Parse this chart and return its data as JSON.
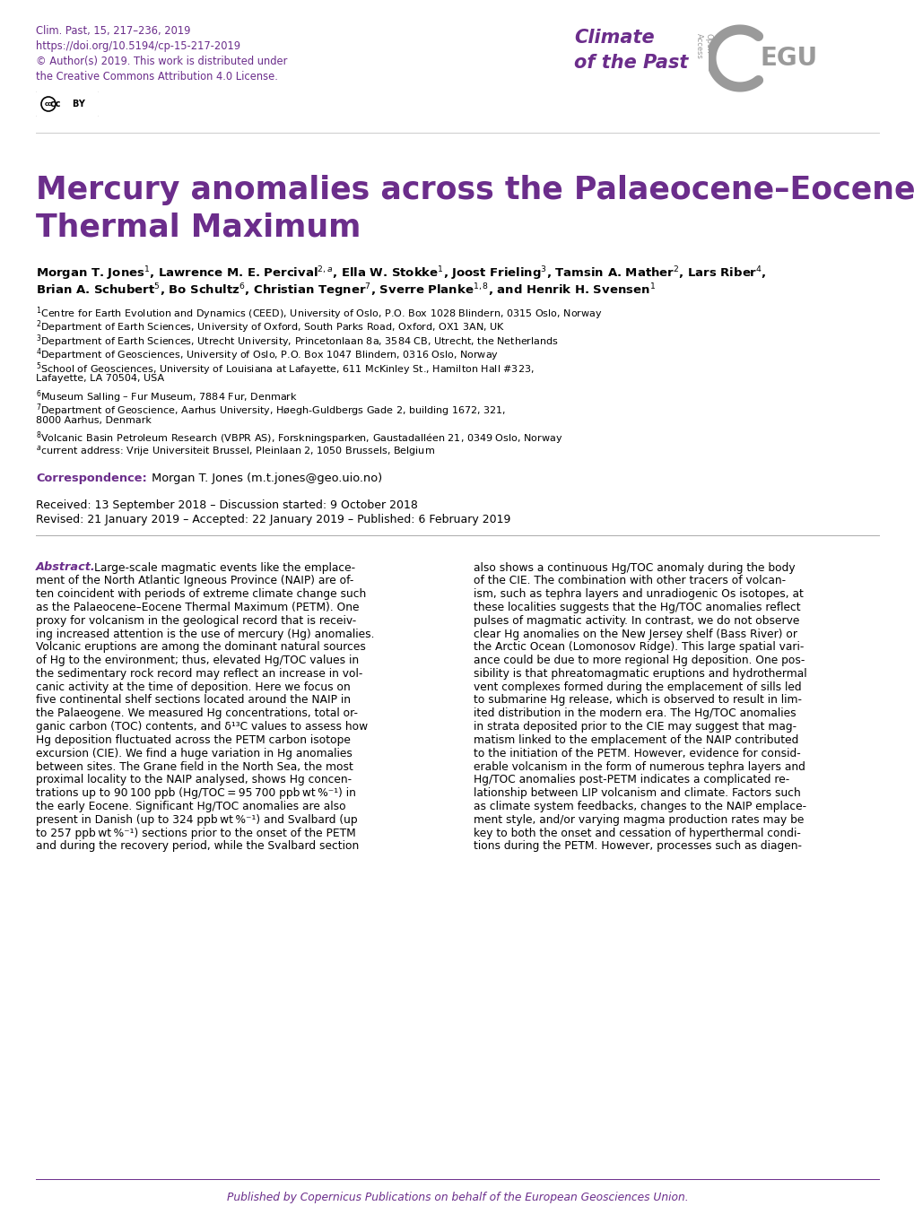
{
  "background_color": "#ffffff",
  "purple": "#6B2D8B",
  "gray": "#9a9a9a",
  "black": "#000000",
  "journal_line1": "Clim. Past, 15, 217–236, 2019",
  "journal_line2": "https://doi.org/10.5194/cp-15-217-2019",
  "journal_line3": "© Author(s) 2019. This work is distributed under",
  "journal_line4": "the Creative Commons Attribution 4.0 License.",
  "journal_name_line1": "Climate",
  "journal_name_line2": "of the Past",
  "title_line1": "Mercury anomalies across the Palaeocene–Eocene",
  "title_line2": "Thermal Maximum",
  "authors_line1": "Morgan T. Jones$^1$, Lawrence M. E. Percival$^{2,a}$, Ella W. Stokke$^1$, Joost Frieling$^3$, Tamsin A. Mather$^2$, Lars Riber$^4$,",
  "authors_line2": "Brian A. Schubert$^5$, Bo Schultz$^6$, Christian Tegner$^7$, Sverre Planke$^{1,8}$, and Henrik H. Svensen$^1$",
  "affil1": "$^1$Centre for Earth Evolution and Dynamics (CEED), University of Oslo, P.O. Box 1028 Blindern, 0315 Oslo, Norway",
  "affil2": "$^2$Department of Earth Sciences, University of Oxford, South Parks Road, Oxford, OX1 3AN, UK",
  "affil3": "$^3$Department of Earth Sciences, Utrecht University, Princetonlaan 8a, 3584 CB, Utrecht, the Netherlands",
  "affil4": "$^4$Department of Geosciences, University of Oslo, P.O. Box 1047 Blindern, 0316 Oslo, Norway",
  "affil5": "$^5$School of Geosciences, University of Louisiana at Lafayette, 611 McKinley St., Hamilton Hall #323,",
  "affil5b": "Lafayette, LA 70504, USA",
  "affil6": "$^6$Museum Salling – Fur Museum, 7884 Fur, Denmark",
  "affil7": "$^7$Department of Geoscience, Aarhus University, Høegh-Guldbergs Gade 2, building 1672, 321,",
  "affil7b": "8000 Aarhus, Denmark",
  "affil8": "$^8$Volcanic Basin Petroleum Research (VBPR AS), Forskningsparken, Gaustadalléen 21, 0349 Oslo, Norway",
  "affila": "$^a$current address: Vrije Universiteit Brussel, Pleinlaan 2, 1050 Brussels, Belgium",
  "corr_label": "Correspondence:",
  "corr_text": " Morgan T. Jones (m.t.jones@geo.uio.no)",
  "received": "Received: 13 September 2018 – Discussion started: 9 October 2018",
  "revised": "Revised: 21 January 2019 – Accepted: 22 January 2019 – Published: 6 February 2019",
  "abs_label": "Abstract.",
  "abs_col1_lines": [
    "Large-scale magmatic events like the emplace-",
    "ment of the North Atlantic Igneous Province (NAIP) are of-",
    "ten coincident with periods of extreme climate change such",
    "as the Palaeocene–Eocene Thermal Maximum (PETM). One",
    "proxy for volcanism in the geological record that is receiv-",
    "ing increased attention is the use of mercury (Hg) anomalies.",
    "Volcanic eruptions are among the dominant natural sources",
    "of Hg to the environment; thus, elevated Hg/TOC values in",
    "the sedimentary rock record may reflect an increase in vol-",
    "canic activity at the time of deposition. Here we focus on",
    "five continental shelf sections located around the NAIP in",
    "the Palaeogene. We measured Hg concentrations, total or-",
    "ganic carbon (TOC) contents, and δ¹³C values to assess how",
    "Hg deposition fluctuated across the PETM carbon isotope",
    "excursion (CIE). We find a huge variation in Hg anomalies",
    "between sites. The Grane field in the North Sea, the most",
    "proximal locality to the NAIP analysed, shows Hg concen-",
    "trations up to 90 100 ppb (Hg/TOC = 95 700 ppb wt %⁻¹) in",
    "the early Eocene. Significant Hg/TOC anomalies are also",
    "present in Danish (up to 324 ppb wt %⁻¹) and Svalbard (up",
    "to 257 ppb wt %⁻¹) sections prior to the onset of the PETM",
    "and during the recovery period, while the Svalbard section"
  ],
  "abs_col2_lines": [
    "also shows a continuous Hg/TOC anomaly during the body",
    "of the CIE. The combination with other tracers of volcan-",
    "ism, such as tephra layers and unradiogenic Os isotopes, at",
    "these localities suggests that the Hg/TOC anomalies reflect",
    "pulses of magmatic activity. In contrast, we do not observe",
    "clear Hg anomalies on the New Jersey shelf (Bass River) or",
    "the Arctic Ocean (Lomonosov Ridge). This large spatial vari-",
    "ance could be due to more regional Hg deposition. One pos-",
    "sibility is that phreatomagmatic eruptions and hydrothermal",
    "vent complexes formed during the emplacement of sills led",
    "to submarine Hg release, which is observed to result in lim-",
    "ited distribution in the modern era. The Hg/TOC anomalies",
    "in strata deposited prior to the CIE may suggest that mag-",
    "matism linked to the emplacement of the NAIP contributed",
    "to the initiation of the PETM. However, evidence for consid-",
    "erable volcanism in the form of numerous tephra layers and",
    "Hg/TOC anomalies post-PETM indicates a complicated re-",
    "lationship between LIP volcanism and climate. Factors such",
    "as climate system feedbacks, changes to the NAIP emplace-",
    "ment style, and/or varying magma production rates may be",
    "key to both the onset and cessation of hyperthermal condi-",
    "tions during the PETM. However, processes such as diagen-"
  ],
  "footer": "Published by Copernicus Publications on behalf of the European Geosciences Union."
}
